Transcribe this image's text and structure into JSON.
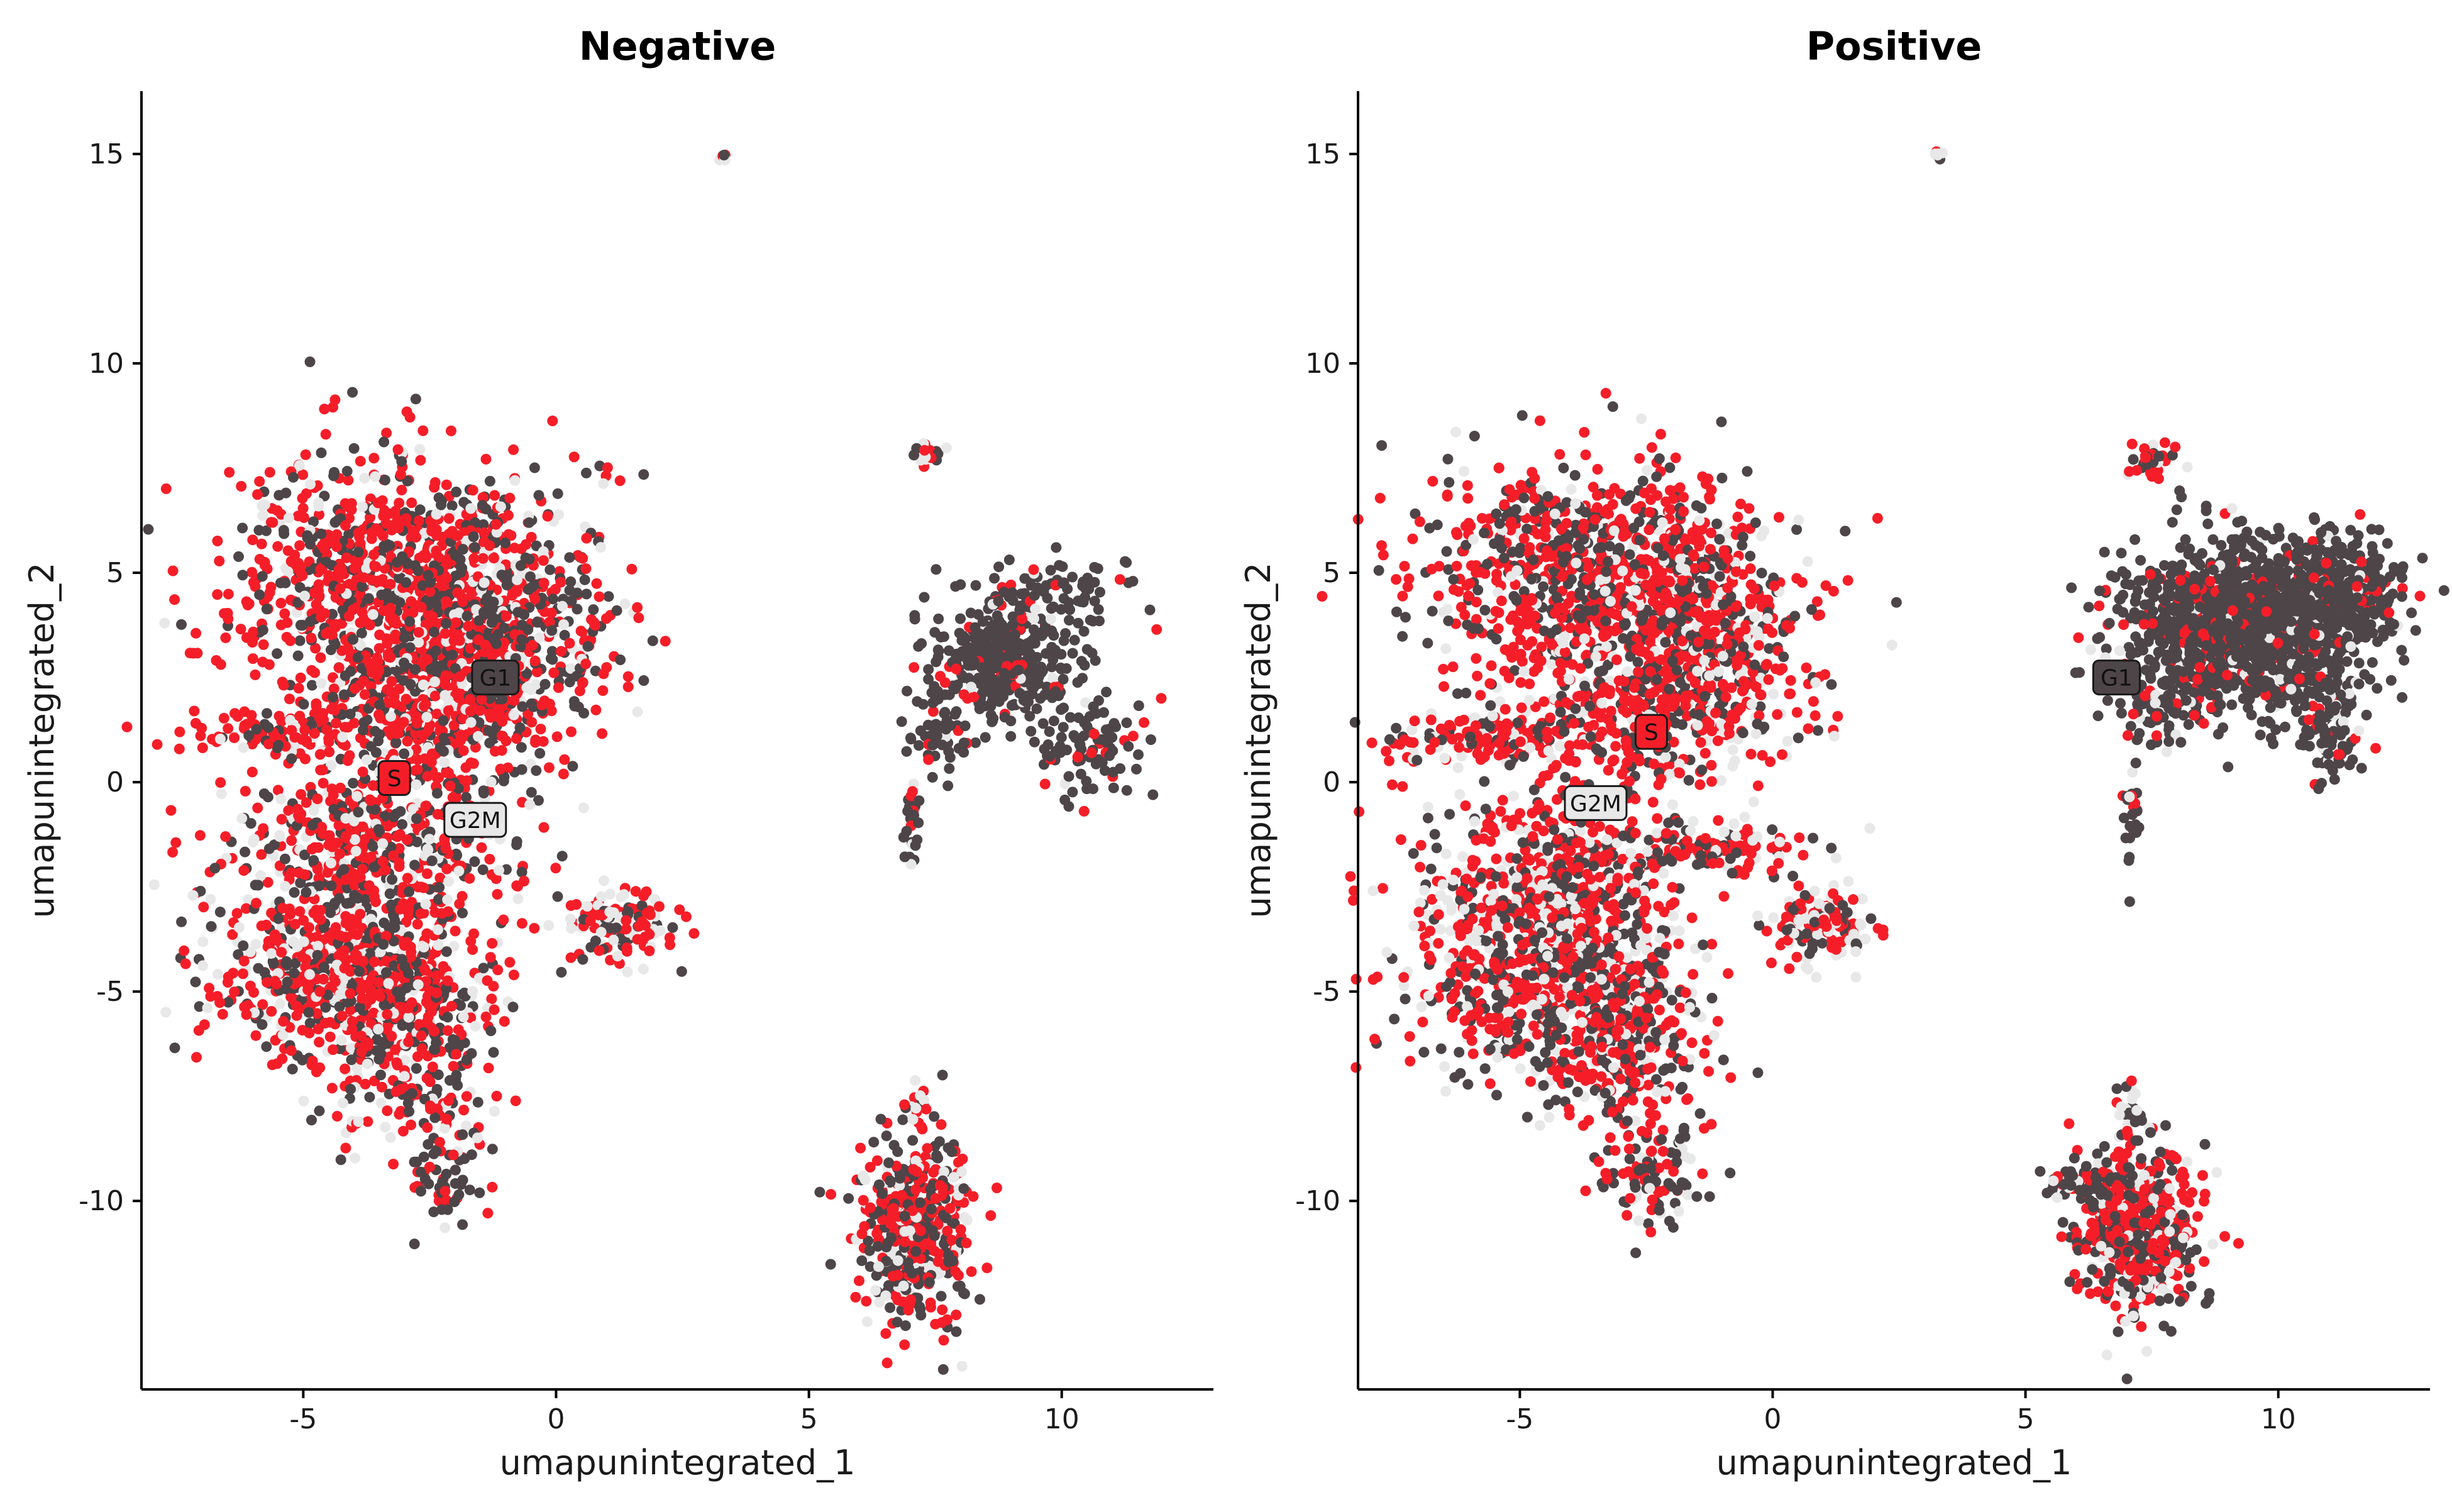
{
  "chart_data": [
    {
      "type": "scatter",
      "title": "Negative",
      "xlabel": "umapunintegrated_1",
      "ylabel": "umapunintegrated_2",
      "xlim": [
        -8.2,
        13
      ],
      "ylim": [
        -14.5,
        16.5
      ],
      "x_ticks": [
        -5,
        0,
        5,
        10
      ],
      "y_ticks": [
        -10,
        -5,
        0,
        5,
        10,
        15
      ],
      "x_tick_labels": [
        "-5",
        "0",
        "5",
        "10"
      ],
      "y_tick_labels": [
        "-10",
        "-5",
        "0",
        "5",
        "10",
        "15"
      ],
      "grid": false,
      "series": [
        {
          "key": "G1",
          "color": "#4d4548"
        },
        {
          "key": "G2M",
          "color": "#e8e8e8"
        },
        {
          "key": "S",
          "color": "#f51e28"
        }
      ],
      "clusters": [
        {
          "cx": -3.4,
          "cy": 4.8,
          "sx": 1.5,
          "sy": 1.5,
          "n": 900,
          "w": [
            0.3,
            0.1,
            0.6
          ]
        },
        {
          "cx": -1.0,
          "cy": 3.5,
          "sx": 1.1,
          "sy": 1.6,
          "n": 550,
          "w": [
            0.4,
            0.15,
            0.45
          ]
        },
        {
          "cx": -2.8,
          "cy": 1.6,
          "sx": 1.3,
          "sy": 1.1,
          "n": 350,
          "w": [
            0.3,
            0.15,
            0.55
          ]
        },
        {
          "cx": -5.6,
          "cy": 1.2,
          "sx": 0.9,
          "sy": 0.25,
          "n": 90,
          "w": [
            0.2,
            0.15,
            0.65
          ]
        },
        {
          "cx": -3.6,
          "cy": -1.6,
          "sx": 1.4,
          "sy": 1.0,
          "n": 500,
          "w": [
            0.3,
            0.2,
            0.5
          ]
        },
        {
          "cx": -4.4,
          "cy": -4.6,
          "sx": 1.2,
          "sy": 1.1,
          "n": 550,
          "w": [
            0.3,
            0.2,
            0.5
          ]
        },
        {
          "cx": -2.9,
          "cy": -5.8,
          "sx": 0.8,
          "sy": 1.2,
          "n": 350,
          "w": [
            0.35,
            0.15,
            0.5
          ]
        },
        {
          "cx": -2.2,
          "cy": -9.2,
          "sx": 0.45,
          "sy": 0.7,
          "n": 70,
          "w": [
            0.6,
            0.1,
            0.3
          ]
        },
        {
          "cx": 1.2,
          "cy": -3.4,
          "sx": 0.55,
          "sy": 0.45,
          "n": 140,
          "w": [
            0.2,
            0.3,
            0.5
          ]
        },
        {
          "cx": 8.9,
          "cy": 3.0,
          "sx": 0.65,
          "sy": 0.7,
          "n": 420,
          "w": [
            0.85,
            0.05,
            0.1
          ]
        },
        {
          "cx": 9.9,
          "cy": 4.6,
          "sx": 1.0,
          "sy": 0.45,
          "n": 70,
          "w": [
            0.85,
            0.05,
            0.1
          ]
        },
        {
          "cx": 7.6,
          "cy": 1.4,
          "sx": 0.35,
          "sy": 0.6,
          "n": 60,
          "w": [
            0.85,
            0.05,
            0.1
          ]
        },
        {
          "cx": 10.6,
          "cy": 0.9,
          "sx": 0.5,
          "sy": 0.6,
          "n": 90,
          "w": [
            0.8,
            0.05,
            0.15
          ]
        },
        {
          "cx": 7.05,
          "cy": -1.2,
          "sx": 0.08,
          "sy": 0.5,
          "n": 25,
          "w": [
            0.7,
            0.05,
            0.25
          ]
        },
        {
          "cx": 7.3,
          "cy": 7.8,
          "sx": 0.15,
          "sy": 0.15,
          "n": 18,
          "w": [
            0.3,
            0.3,
            0.4
          ]
        },
        {
          "cx": 3.3,
          "cy": 14.95,
          "sx": 0.05,
          "sy": 0.03,
          "n": 8,
          "w": [
            0.1,
            0.5,
            0.4
          ]
        },
        {
          "cx": 7.1,
          "cy": -10.8,
          "sx": 0.55,
          "sy": 1.1,
          "n": 450,
          "w": [
            0.4,
            0.15,
            0.45
          ]
        },
        {
          "cx": 7.1,
          "cy": -7.8,
          "sx": 0.12,
          "sy": 0.5,
          "n": 20,
          "w": [
            0.6,
            0.2,
            0.2
          ]
        }
      ],
      "labels": [
        {
          "text": "G1",
          "x": -1.2,
          "y": 2.5,
          "series": "G1"
        },
        {
          "text": "S",
          "x": -3.2,
          "y": 0.1,
          "series": "S"
        },
        {
          "text": "G2M",
          "x": -1.6,
          "y": -0.9,
          "series": "G2M"
        }
      ]
    },
    {
      "type": "scatter",
      "title": "Positive",
      "xlabel": "umapunintegrated_1",
      "ylabel": "umapunintegrated_2",
      "xlim": [
        -8.2,
        13
      ],
      "ylim": [
        -14.5,
        16.5
      ],
      "x_ticks": [
        -5,
        0,
        5,
        10
      ],
      "y_ticks": [
        -10,
        -5,
        0,
        5,
        10,
        15
      ],
      "x_tick_labels": [
        "-5",
        "0",
        "5",
        "10"
      ],
      "y_tick_labels": [
        "-10",
        "-5",
        "0",
        "5",
        "10",
        "15"
      ],
      "grid": false,
      "series": [
        {
          "key": "G1",
          "color": "#4d4548"
        },
        {
          "key": "G2M",
          "color": "#e8e8e8"
        },
        {
          "key": "S",
          "color": "#f51e28"
        }
      ],
      "clusters": [
        {
          "cx": -3.6,
          "cy": 5.0,
          "sx": 1.6,
          "sy": 1.3,
          "n": 800,
          "w": [
            0.3,
            0.1,
            0.6
          ]
        },
        {
          "cx": -1.4,
          "cy": 3.6,
          "sx": 1.1,
          "sy": 1.4,
          "n": 500,
          "w": [
            0.35,
            0.15,
            0.5
          ]
        },
        {
          "cx": -3.0,
          "cy": 1.5,
          "sx": 1.4,
          "sy": 1.0,
          "n": 350,
          "w": [
            0.25,
            0.15,
            0.6
          ]
        },
        {
          "cx": -6.1,
          "cy": 1.0,
          "sx": 0.8,
          "sy": 0.25,
          "n": 90,
          "w": [
            0.2,
            0.15,
            0.65
          ]
        },
        {
          "cx": -1.3,
          "cy": -1.7,
          "sx": 1.0,
          "sy": 0.35,
          "n": 120,
          "w": [
            0.3,
            0.2,
            0.5
          ]
        },
        {
          "cx": -4.4,
          "cy": -2.3,
          "sx": 1.3,
          "sy": 1.2,
          "n": 500,
          "w": [
            0.3,
            0.2,
            0.5
          ]
        },
        {
          "cx": -4.6,
          "cy": -4.8,
          "sx": 1.3,
          "sy": 1.1,
          "n": 550,
          "w": [
            0.3,
            0.25,
            0.45
          ]
        },
        {
          "cx": -3.0,
          "cy": -6.2,
          "sx": 0.9,
          "sy": 1.1,
          "n": 300,
          "w": [
            0.35,
            0.2,
            0.45
          ]
        },
        {
          "cx": -2.3,
          "cy": -9.3,
          "sx": 0.55,
          "sy": 0.65,
          "n": 100,
          "w": [
            0.5,
            0.15,
            0.35
          ]
        },
        {
          "cx": 0.9,
          "cy": -3.4,
          "sx": 0.55,
          "sy": 0.45,
          "n": 140,
          "w": [
            0.2,
            0.35,
            0.45
          ]
        },
        {
          "cx": 9.4,
          "cy": 3.8,
          "sx": 1.2,
          "sy": 1.0,
          "n": 1400,
          "w": [
            0.85,
            0.04,
            0.11
          ]
        },
        {
          "cx": 11.2,
          "cy": 4.6,
          "sx": 0.6,
          "sy": 0.55,
          "n": 200,
          "w": [
            0.85,
            0.04,
            0.11
          ]
        },
        {
          "cx": 11.0,
          "cy": 1.2,
          "sx": 0.3,
          "sy": 0.6,
          "n": 90,
          "w": [
            0.75,
            0.05,
            0.2
          ]
        },
        {
          "cx": 7.6,
          "cy": 2.0,
          "sx": 0.35,
          "sy": 0.6,
          "n": 80,
          "w": [
            0.85,
            0.05,
            0.1
          ]
        },
        {
          "cx": 7.1,
          "cy": -0.8,
          "sx": 0.1,
          "sy": 0.6,
          "n": 25,
          "w": [
            0.7,
            0.05,
            0.25
          ]
        },
        {
          "cx": 7.5,
          "cy": 7.7,
          "sx": 0.25,
          "sy": 0.2,
          "n": 40,
          "w": [
            0.4,
            0.2,
            0.4
          ]
        },
        {
          "cx": 3.3,
          "cy": 15.0,
          "sx": 0.06,
          "sy": 0.04,
          "n": 8,
          "w": [
            0.1,
            0.6,
            0.3
          ]
        },
        {
          "cx": 7.2,
          "cy": -10.7,
          "sx": 0.6,
          "sy": 1.0,
          "n": 550,
          "w": [
            0.35,
            0.15,
            0.5
          ]
        },
        {
          "cx": 6.2,
          "cy": -9.6,
          "sx": 0.45,
          "sy": 0.2,
          "n": 70,
          "w": [
            0.7,
            0.05,
            0.25
          ]
        },
        {
          "cx": 7.1,
          "cy": -7.8,
          "sx": 0.15,
          "sy": 0.5,
          "n": 25,
          "w": [
            0.6,
            0.25,
            0.15
          ]
        }
      ],
      "labels": [
        {
          "text": "G1",
          "x": 6.8,
          "y": 2.5,
          "series": "G1"
        },
        {
          "text": "S",
          "x": -2.4,
          "y": 1.2,
          "series": "S"
        },
        {
          "text": "G2M",
          "x": -3.5,
          "y": -0.5,
          "series": "G2M"
        }
      ]
    }
  ]
}
